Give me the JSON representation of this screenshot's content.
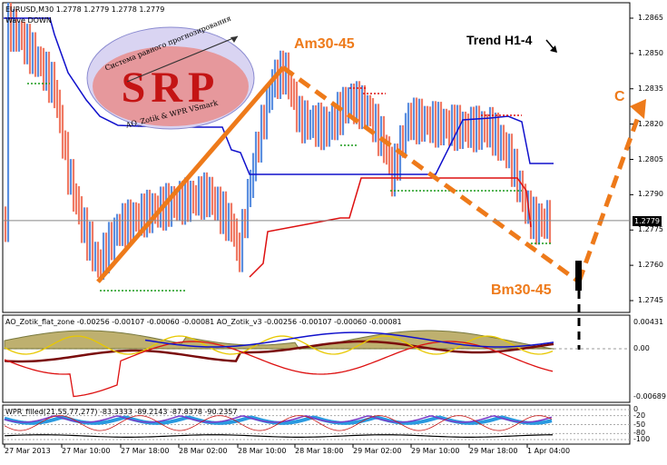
{
  "header": {
    "symbol_line": "EURUSD,M30  1.2778 1.2779 1.2778 1.2779",
    "wave_line": "Wave DOWN"
  },
  "logo": {
    "top_text": "Система равного прогнозирования",
    "brand": "SRP",
    "bottom_text": "AO_Zotik & WPR VSmark"
  },
  "annotations": {
    "am": "Am30-45",
    "bm": "Bm30-45",
    "c": "C",
    "trend": "Trend H1-4"
  },
  "price_axis": {
    "ticks": [
      "1.2865",
      "1.2850",
      "1.2835",
      "1.2820",
      "1.2805",
      "1.2790",
      "1.2775",
      "1.2760",
      "1.2745"
    ],
    "current_price": "1.2779"
  },
  "ao_pane": {
    "label": "AO_Zotik_flat_zone -0.00256 -0.00107 -0.00060 -0.00081  AO_Zotik_v3 -0.00256 -0.00107 -0.00060 -0.00081",
    "ticks": [
      "0.00431",
      "0.00",
      "-0.00689"
    ]
  },
  "wpr_pane": {
    "label": "WPR_filled(21,55,77,277) -83.3333 -89.2143 -87.8378 -90.2357",
    "ticks": [
      "0",
      "-20",
      "-50",
      "-80",
      "-100"
    ]
  },
  "time_axis": {
    "labels": [
      "27 Mar 2013",
      "27 Mar 10:00",
      "27 Mar 18:00",
      "28 Mar 02:00",
      "28 Mar 10:00",
      "28 Mar 18:00",
      "29 Mar 02:00",
      "29 Mar 10:00",
      "29 Mar 18:00",
      "1 Apr 04:00"
    ]
  },
  "colors": {
    "bull_bar": "#5b8fe0",
    "bear_bar": "#f07a64",
    "upper_band": "#1010cc",
    "lower_band": "#dd1010",
    "wave_line": "#ee7a1a",
    "support_dots": "#1a9a1a",
    "resistance_dots": "#dd1010"
  },
  "chart_data": {
    "type": "line",
    "title": "EURUSD,M30",
    "wave_points": [
      {
        "label": "",
        "price": 1.2753
      },
      {
        "label": "Am30-45",
        "price": 1.2844
      },
      {
        "label": "Bm30-45",
        "price": 1.2753
      },
      {
        "label": "C",
        "price": 1.2826
      }
    ],
    "ylim": [
      1.274,
      1.287
    ],
    "current_price": 1.2779,
    "ao_range": [
      -0.00689,
      0.00431
    ],
    "wpr_levels": [
      0,
      -20,
      -50,
      -80,
      -100
    ]
  }
}
